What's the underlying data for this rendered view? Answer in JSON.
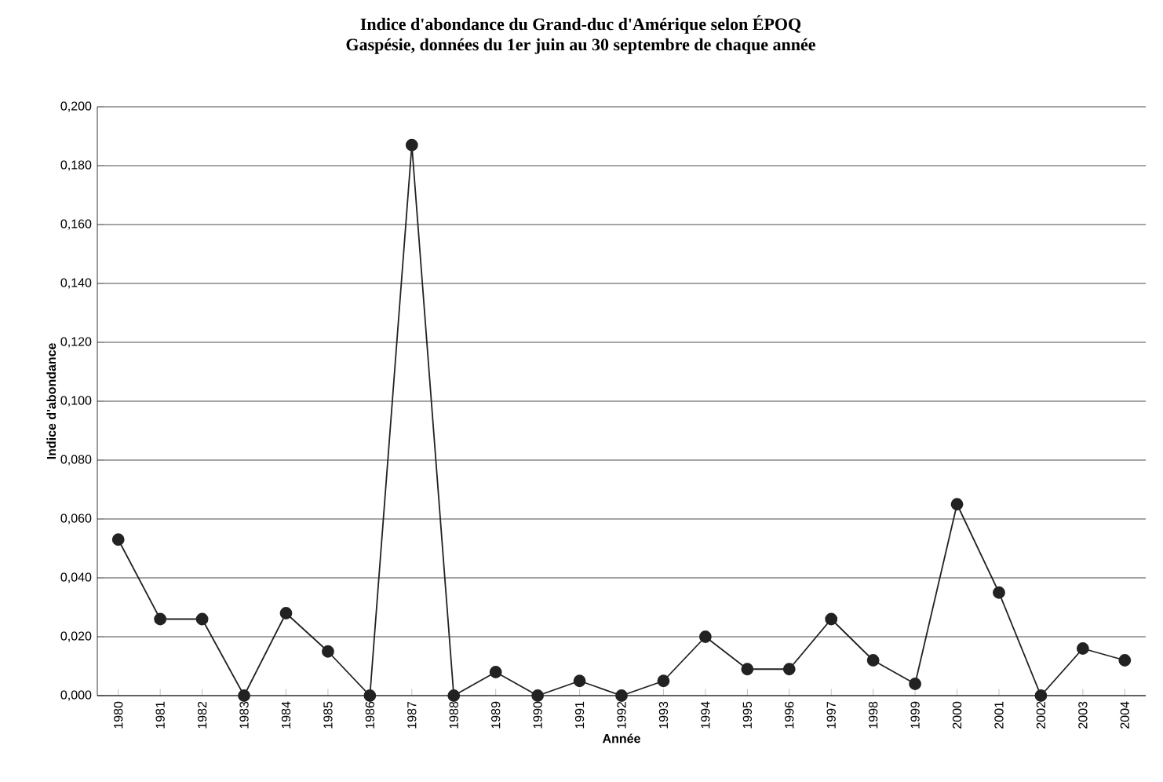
{
  "chart_data": {
    "type": "line",
    "title": "Indice d'abondance du Grand-duc d'Amérique selon ÉPOQ",
    "subtitle": "Gaspésie, données du 1er juin au 30 septembre de chaque année",
    "xlabel": "Année",
    "ylabel": "Indice d'abondance",
    "categories": [
      "1980",
      "1981",
      "1982",
      "1983",
      "1984",
      "1985",
      "1986",
      "1987",
      "1988",
      "1989",
      "1990",
      "1991",
      "1992",
      "1993",
      "1994",
      "1995",
      "1996",
      "1997",
      "1998",
      "1999",
      "2000",
      "2001",
      "2002",
      "2003",
      "2004"
    ],
    "series": [
      {
        "color": "#222222",
        "values": [
          0.053,
          0.026,
          0.026,
          0,
          0.028,
          0.015,
          0,
          0.187,
          0,
          0.008,
          0,
          0.005,
          0,
          0.005,
          0.02,
          0.009,
          0.009,
          0.026,
          0.012,
          0.004,
          0.065,
          0.035,
          0,
          0.016,
          0.012
        ]
      }
    ],
    "ylim": [
      0,
      0.2
    ],
    "yticks": [
      {
        "value": 0,
        "label": "0,000"
      },
      {
        "value": 0.02,
        "label": "0,020"
      },
      {
        "value": 0.04,
        "label": "0,040"
      },
      {
        "value": 0.06,
        "label": "0,060"
      },
      {
        "value": 0.08,
        "label": "0,080"
      },
      {
        "value": 0.1,
        "label": "0,100"
      },
      {
        "value": 0.12,
        "label": "0,120"
      },
      {
        "value": 0.14,
        "label": "0,140"
      },
      {
        "value": 0.16,
        "label": "0,160"
      },
      {
        "value": 0.18,
        "label": "0,180"
      },
      {
        "value": 0.2,
        "label": "0,200"
      }
    ],
    "grid": "y",
    "marker": "circle",
    "line_style": "solid"
  }
}
